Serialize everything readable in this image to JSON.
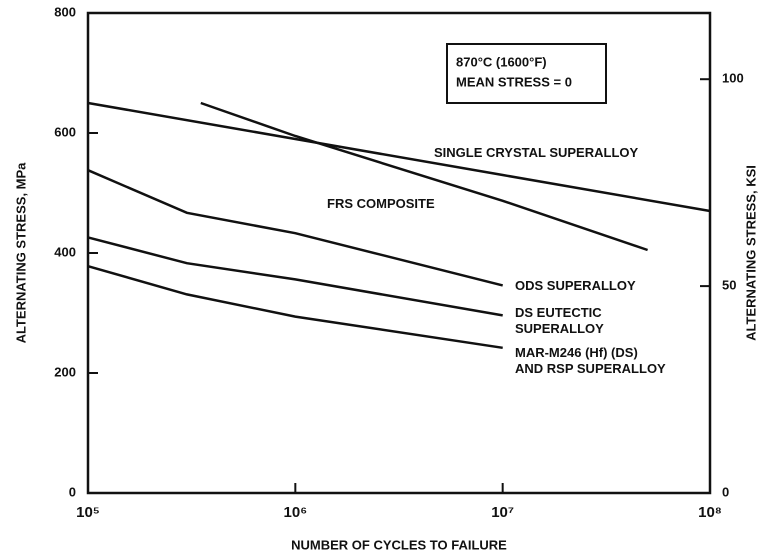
{
  "chart_data": {
    "type": "line",
    "xlabel": "NUMBER OF CYCLES TO FAILURE",
    "ylabel": "ALTERNATING STRESS, MPa",
    "y2label": "ALTERNATING STRESS, KSI",
    "annotation": [
      "870°C (1600°F)",
      "MEAN STRESS = 0"
    ],
    "xlim": [
      100000,
      100000000
    ],
    "xlog": true,
    "xticks": [
      {
        "value": 100000,
        "label": "10⁵"
      },
      {
        "value": 1000000,
        "label": "10⁶"
      },
      {
        "value": 10000000,
        "label": "10⁷"
      },
      {
        "value": 100000000,
        "label": "10⁸"
      }
    ],
    "ylim": [
      0,
      800
    ],
    "yticks": [
      0,
      200,
      400,
      600,
      800
    ],
    "y2lim": [
      0,
      116
    ],
    "y2ticks": [
      0,
      50,
      100
    ],
    "series": [
      {
        "name": "SINGLE CRYSTAL SUPERALLOY",
        "color": "#111111",
        "x": [
          100000,
          1000000,
          10000000,
          100000000
        ],
        "values": [
          650,
          590,
          530,
          470
        ]
      },
      {
        "name": "FRS COMPOSITE",
        "color": "#111111",
        "x": [
          350000,
          1000000,
          10000000,
          50000000
        ],
        "values": [
          650,
          595,
          487,
          405
        ]
      },
      {
        "name": "ODS SUPERALLOY",
        "color": "#111111",
        "x": [
          100000,
          300000,
          1000000,
          10000000
        ],
        "values": [
          538,
          467,
          433,
          346
        ]
      },
      {
        "name": "DS EUTECTIC\nSUPERALLOY",
        "color": "#111111",
        "x": [
          100000,
          300000,
          1000000,
          10000000
        ],
        "values": [
          426,
          383,
          356,
          296
        ]
      },
      {
        "name": "MAR-M246 (Hf) (DS)\nAND RSP SUPERALLOY",
        "color": "#111111",
        "x": [
          100000,
          300000,
          1000000,
          10000000
        ],
        "values": [
          378,
          331,
          294,
          242
        ]
      }
    ]
  }
}
